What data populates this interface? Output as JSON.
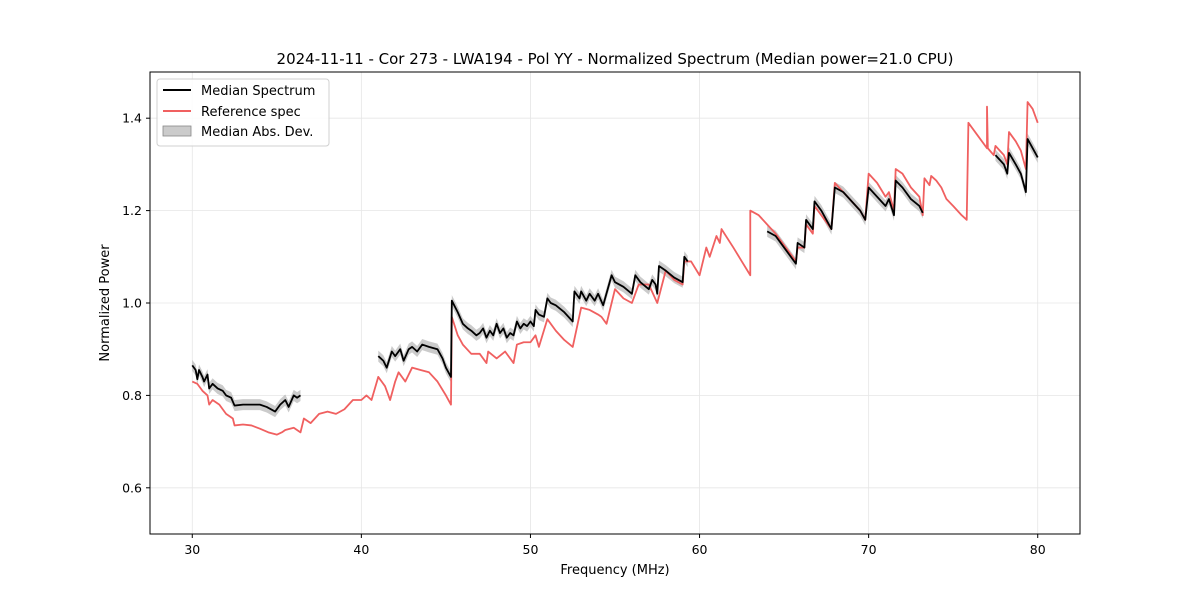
{
  "chart_data": {
    "type": "line",
    "title": "2024-11-11 - Cor 273 - LWA194 - Pol YY - Normalized Spectrum (Median power=21.0 CPU)",
    "xlabel": "Frequency (MHz)",
    "ylabel": "Normalized Power",
    "xlim": [
      27.5,
      82.5
    ],
    "ylim": [
      0.5,
      1.5
    ],
    "xticks": [
      30,
      40,
      50,
      60,
      70,
      80
    ],
    "yticks": [
      0.6,
      0.8,
      1.0,
      1.2,
      1.4
    ],
    "xtick_labels": [
      "30",
      "40",
      "50",
      "60",
      "70",
      "80"
    ],
    "ytick_labels": [
      "0.6",
      "0.8",
      "1.0",
      "1.2",
      "1.4"
    ],
    "grid": true,
    "legend_location": "top-left",
    "legend": [
      {
        "label": "Median Spectrum",
        "kind": "line",
        "color": "#000000"
      },
      {
        "label": "Reference spec",
        "kind": "line",
        "color": "#f06060"
      },
      {
        "label": "Median Abs. Dev.",
        "kind": "band",
        "color": "#a9a9a9"
      }
    ],
    "series": [
      {
        "name": "Reference spec",
        "color": "#f06060",
        "segments": [
          [
            [
              30.0,
              0.83
            ],
            [
              30.3,
              0.825
            ],
            [
              30.6,
              0.81
            ],
            [
              30.9,
              0.8
            ],
            [
              31.0,
              0.78
            ],
            [
              31.2,
              0.79
            ],
            [
              31.6,
              0.78
            ],
            [
              32.0,
              0.76
            ],
            [
              32.4,
              0.75
            ],
            [
              32.5,
              0.735
            ],
            [
              33.0,
              0.737
            ],
            [
              33.5,
              0.735
            ],
            [
              34.0,
              0.728
            ],
            [
              34.5,
              0.72
            ],
            [
              35.0,
              0.715
            ],
            [
              35.3,
              0.72
            ],
            [
              35.5,
              0.725
            ],
            [
              36.0,
              0.73
            ],
            [
              36.4,
              0.72
            ],
            [
              36.6,
              0.75
            ],
            [
              37.0,
              0.74
            ],
            [
              37.5,
              0.76
            ],
            [
              38.0,
              0.765
            ],
            [
              38.5,
              0.76
            ],
            [
              39.0,
              0.77
            ],
            [
              39.5,
              0.79
            ],
            [
              40.0,
              0.79
            ],
            [
              40.3,
              0.8
            ],
            [
              40.6,
              0.79
            ],
            [
              41.0,
              0.84
            ],
            [
              41.4,
              0.82
            ],
            [
              41.7,
              0.79
            ],
            [
              42.0,
              0.83
            ],
            [
              42.2,
              0.85
            ],
            [
              42.6,
              0.83
            ],
            [
              43.0,
              0.86
            ],
            [
              43.5,
              0.855
            ],
            [
              44.0,
              0.85
            ],
            [
              44.5,
              0.83
            ],
            [
              45.0,
              0.8
            ],
            [
              45.3,
              0.78
            ],
            [
              45.35,
              0.97
            ],
            [
              45.7,
              0.93
            ],
            [
              46.0,
              0.91
            ],
            [
              46.5,
              0.89
            ],
            [
              47.0,
              0.89
            ],
            [
              47.4,
              0.87
            ],
            [
              47.5,
              0.895
            ],
            [
              48.0,
              0.88
            ],
            [
              48.5,
              0.895
            ],
            [
              49.0,
              0.87
            ],
            [
              49.2,
              0.91
            ],
            [
              49.6,
              0.915
            ],
            [
              50.0,
              0.915
            ],
            [
              50.3,
              0.93
            ],
            [
              50.5,
              0.905
            ],
            [
              51.0,
              0.965
            ],
            [
              51.5,
              0.94
            ],
            [
              52.0,
              0.92
            ],
            [
              52.5,
              0.905
            ],
            [
              53.0,
              0.99
            ],
            [
              53.5,
              0.985
            ],
            [
              54.0,
              0.975
            ],
            [
              54.2,
              0.97
            ],
            [
              54.5,
              0.955
            ],
            [
              55.0,
              1.03
            ],
            [
              55.5,
              1.01
            ],
            [
              56.0,
              1.0
            ],
            [
              56.4,
              1.04
            ],
            [
              57.0,
              1.04
            ],
            [
              57.5,
              1.0
            ],
            [
              58.0,
              1.07
            ],
            [
              58.5,
              1.05
            ],
            [
              59.0,
              1.04
            ],
            [
              59.1,
              1.09
            ],
            [
              59.5,
              1.09
            ],
            [
              60.0,
              1.06
            ],
            [
              60.4,
              1.12
            ],
            [
              60.6,
              1.1
            ],
            [
              61.0,
              1.145
            ],
            [
              61.2,
              1.13
            ],
            [
              61.3,
              1.16
            ],
            [
              62.0,
              1.12
            ],
            [
              62.5,
              1.09
            ],
            [
              63.0,
              1.06
            ],
            [
              63.0,
              1.2
            ],
            [
              63.5,
              1.19
            ],
            [
              64.0,
              1.17
            ],
            [
              64.5,
              1.15
            ],
            [
              65.0,
              1.125
            ],
            [
              65.7,
              1.09
            ],
            [
              65.8,
              1.12
            ],
            [
              66.2,
              1.12
            ],
            [
              66.3,
              1.17
            ],
            [
              66.7,
              1.15
            ],
            [
              66.8,
              1.21
            ],
            [
              67.2,
              1.19
            ],
            [
              67.8,
              1.16
            ],
            [
              68.0,
              1.26
            ],
            [
              68.5,
              1.24
            ],
            [
              69.0,
              1.22
            ],
            [
              69.5,
              1.2
            ],
            [
              69.8,
              1.18
            ],
            [
              70.0,
              1.28
            ],
            [
              70.5,
              1.26
            ],
            [
              71.0,
              1.23
            ],
            [
              71.2,
              1.24
            ],
            [
              71.5,
              1.2
            ],
            [
              71.6,
              1.29
            ],
            [
              72.0,
              1.28
            ],
            [
              72.5,
              1.25
            ],
            [
              73.0,
              1.23
            ],
            [
              73.2,
              1.19
            ],
            [
              73.3,
              1.27
            ],
            [
              73.6,
              1.255
            ],
            [
              73.7,
              1.275
            ],
            [
              74.0,
              1.265
            ],
            [
              74.3,
              1.25
            ],
            [
              74.6,
              1.225
            ],
            [
              75.0,
              1.21
            ],
            [
              75.5,
              1.19
            ],
            [
              75.8,
              1.18
            ],
            [
              75.9,
              1.39
            ],
            [
              76.5,
              1.36
            ],
            [
              77.0,
              1.335
            ],
            [
              77.0,
              1.425
            ],
            [
              77.05,
              1.335
            ],
            [
              77.4,
              1.32
            ],
            [
              77.5,
              1.34
            ],
            [
              78.0,
              1.32
            ],
            [
              78.2,
              1.3
            ],
            [
              78.3,
              1.37
            ],
            [
              78.7,
              1.35
            ],
            [
              79.0,
              1.33
            ],
            [
              79.3,
              1.29
            ],
            [
              79.4,
              1.435
            ],
            [
              79.7,
              1.42
            ],
            [
              80.0,
              1.39
            ]
          ]
        ]
      },
      {
        "name": "Median Spectrum",
        "color": "#000000",
        "band_color": "#a9a9a9",
        "band_halfwidth": 0.012,
        "segments": [
          [
            [
              30.0,
              0.865
            ],
            [
              30.2,
              0.855
            ],
            [
              30.3,
              0.835
            ],
            [
              30.4,
              0.855
            ],
            [
              30.6,
              0.84
            ],
            [
              30.7,
              0.83
            ],
            [
              30.9,
              0.845
            ],
            [
              31.0,
              0.815
            ],
            [
              31.2,
              0.825
            ],
            [
              31.5,
              0.815
            ],
            [
              31.8,
              0.81
            ],
            [
              32.0,
              0.8
            ],
            [
              32.3,
              0.795
            ],
            [
              32.5,
              0.778
            ],
            [
              33.0,
              0.78
            ],
            [
              33.5,
              0.78
            ],
            [
              34.0,
              0.78
            ],
            [
              34.4,
              0.775
            ],
            [
              34.9,
              0.765
            ],
            [
              35.2,
              0.78
            ],
            [
              35.5,
              0.79
            ],
            [
              35.7,
              0.775
            ],
            [
              36.0,
              0.8
            ],
            [
              36.2,
              0.795
            ],
            [
              36.4,
              0.8
            ]
          ],
          [
            [
              41.0,
              0.885
            ],
            [
              41.3,
              0.875
            ],
            [
              41.5,
              0.86
            ],
            [
              41.8,
              0.895
            ],
            [
              42.0,
              0.885
            ],
            [
              42.3,
              0.9
            ],
            [
              42.5,
              0.875
            ],
            [
              42.8,
              0.9
            ],
            [
              43.0,
              0.905
            ],
            [
              43.3,
              0.895
            ],
            [
              43.6,
              0.91
            ],
            [
              44.0,
              0.905
            ],
            [
              44.5,
              0.9
            ],
            [
              44.8,
              0.88
            ],
            [
              45.0,
              0.86
            ],
            [
              45.3,
              0.84
            ],
            [
              45.35,
              1.005
            ],
            [
              45.7,
              0.98
            ],
            [
              46.0,
              0.955
            ],
            [
              46.3,
              0.945
            ],
            [
              46.5,
              0.94
            ],
            [
              46.8,
              0.93
            ],
            [
              47.0,
              0.935
            ],
            [
              47.2,
              0.945
            ],
            [
              47.4,
              0.925
            ],
            [
              47.6,
              0.94
            ],
            [
              47.8,
              0.93
            ],
            [
              48.0,
              0.955
            ],
            [
              48.2,
              0.935
            ],
            [
              48.4,
              0.945
            ],
            [
              48.6,
              0.925
            ],
            [
              48.8,
              0.935
            ],
            [
              49.0,
              0.93
            ],
            [
              49.2,
              0.96
            ],
            [
              49.4,
              0.945
            ],
            [
              49.6,
              0.955
            ],
            [
              49.8,
              0.95
            ],
            [
              50.0,
              0.96
            ],
            [
              50.2,
              0.95
            ],
            [
              50.3,
              0.985
            ],
            [
              50.5,
              0.975
            ],
            [
              50.8,
              0.97
            ],
            [
              51.0,
              1.01
            ],
            [
              51.2,
              1.0
            ],
            [
              51.5,
              0.995
            ],
            [
              52.0,
              0.98
            ],
            [
              52.5,
              0.96
            ],
            [
              52.6,
              1.025
            ],
            [
              52.9,
              1.01
            ],
            [
              53.0,
              1.025
            ],
            [
              53.3,
              1.005
            ],
            [
              53.5,
              1.02
            ],
            [
              53.8,
              1.005
            ],
            [
              54.0,
              1.02
            ],
            [
              54.3,
              0.995
            ],
            [
              54.8,
              1.06
            ],
            [
              55.0,
              1.045
            ],
            [
              55.5,
              1.035
            ],
            [
              56.0,
              1.02
            ],
            [
              56.2,
              1.06
            ],
            [
              56.5,
              1.045
            ],
            [
              57.0,
              1.03
            ],
            [
              57.2,
              1.05
            ],
            [
              57.4,
              1.04
            ],
            [
              57.5,
              1.02
            ],
            [
              57.6,
              1.08
            ],
            [
              58.0,
              1.07
            ],
            [
              58.5,
              1.055
            ],
            [
              59.0,
              1.045
            ],
            [
              59.1,
              1.1
            ],
            [
              59.3,
              1.09
            ]
          ],
          [
            [
              64.0,
              1.155
            ],
            [
              64.5,
              1.145
            ],
            [
              65.0,
              1.12
            ],
            [
              65.7,
              1.085
            ],
            [
              65.8,
              1.13
            ],
            [
              66.2,
              1.12
            ],
            [
              66.3,
              1.18
            ],
            [
              66.7,
              1.16
            ],
            [
              66.8,
              1.22
            ],
            [
              67.2,
              1.2
            ],
            [
              67.8,
              1.16
            ],
            [
              68.0,
              1.25
            ],
            [
              68.5,
              1.24
            ],
            [
              69.0,
              1.22
            ],
            [
              69.5,
              1.2
            ],
            [
              69.8,
              1.18
            ],
            [
              70.0,
              1.25
            ],
            [
              70.5,
              1.23
            ],
            [
              71.0,
              1.21
            ],
            [
              71.2,
              1.225
            ],
            [
              71.5,
              1.19
            ],
            [
              71.6,
              1.265
            ],
            [
              72.0,
              1.25
            ],
            [
              72.5,
              1.225
            ],
            [
              73.0,
              1.21
            ],
            [
              73.2,
              1.195
            ]
          ],
          [
            [
              77.5,
              1.32
            ],
            [
              78.0,
              1.3
            ],
            [
              78.2,
              1.28
            ],
            [
              78.3,
              1.325
            ],
            [
              78.7,
              1.3
            ],
            [
              79.0,
              1.28
            ],
            [
              79.3,
              1.24
            ],
            [
              79.4,
              1.355
            ],
            [
              79.7,
              1.335
            ],
            [
              80.0,
              1.315
            ]
          ]
        ]
      }
    ]
  }
}
